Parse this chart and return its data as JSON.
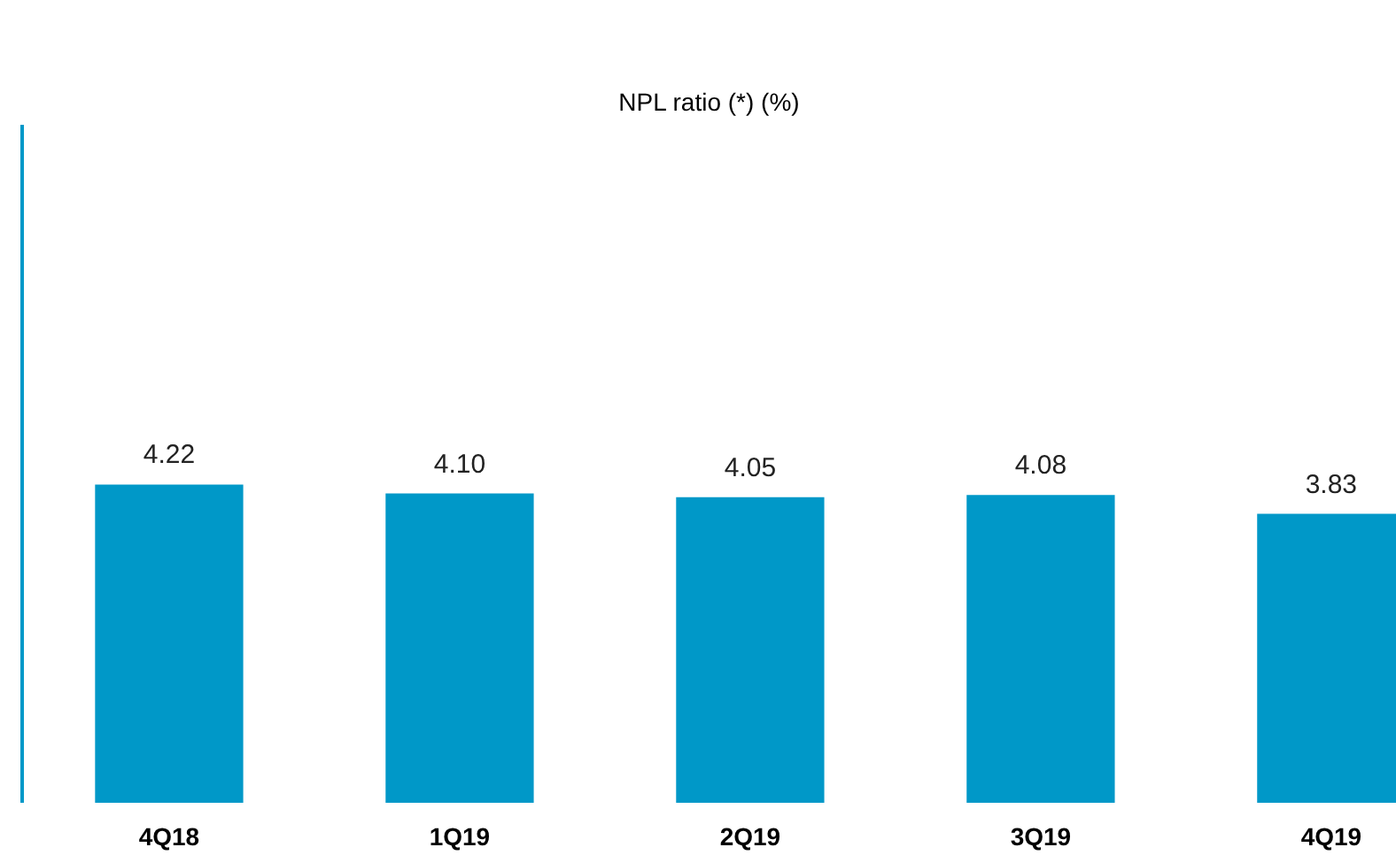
{
  "chart_data": {
    "type": "bar",
    "title": "NPL ratio (*) (%)",
    "categories": [
      "4Q18",
      "1Q19",
      "2Q19",
      "3Q19",
      "4Q19"
    ],
    "values": [
      4.22,
      4.1,
      4.05,
      4.08,
      3.83
    ],
    "value_labels": [
      "4.22",
      "4.10",
      "4.05",
      "4.08",
      "3.83"
    ],
    "color": "#0098c8",
    "grid": false,
    "tick_labels": "x"
  }
}
